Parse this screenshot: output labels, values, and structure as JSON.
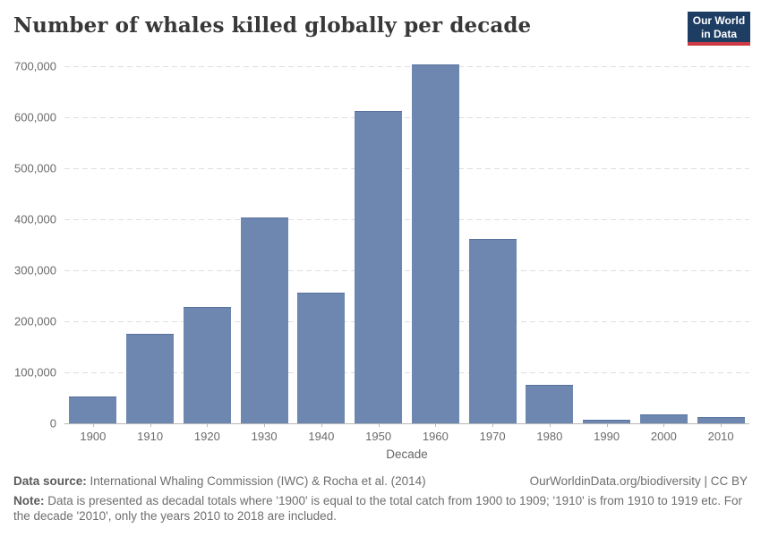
{
  "header": {
    "title": "Number of whales killed globally per decade",
    "logo": {
      "line1": "Our World",
      "line2": "in Data"
    }
  },
  "chart_data": {
    "type": "bar",
    "title": "Number of whales killed globally per decade",
    "categories": [
      "1900",
      "1910",
      "1920",
      "1930",
      "1940",
      "1950",
      "1960",
      "1970",
      "1980",
      "1990",
      "2000",
      "2010"
    ],
    "values": [
      52000,
      176000,
      228000,
      403000,
      256000,
      612000,
      703000,
      362000,
      76000,
      7000,
      17000,
      13000
    ],
    "xlabel": "Decade",
    "ylabel": "",
    "ylim": [
      0,
      700000
    ],
    "ytick_values": [
      0,
      100000,
      200000,
      300000,
      400000,
      500000,
      600000,
      700000
    ],
    "ytick_labels": [
      "0",
      "100,000",
      "200,000",
      "300,000",
      "400,000",
      "500,000",
      "600,000",
      "700,000"
    ],
    "grid": true,
    "legend_position": "none",
    "bar_color": "#6d87b1"
  },
  "footer": {
    "source_label": "Data source:",
    "source_text": " International Whaling Commission (IWC) & Rocha et al. (2014)",
    "attribution": "OurWorldinData.org/biodiversity | CC BY",
    "note_label": "Note:",
    "note_text": " Data is presented as decadal totals where '1900' is equal to the total catch from 1900 to 1909; '1910' is from 1910 to 1919 etc. For the decade '2010', only the years 2010 to 2018 are included."
  },
  "colors": {
    "bar": "#6d87b1",
    "logo_bg": "#1d3d63",
    "logo_red": "#cc3b45",
    "gridline": "#dedede",
    "axis_line": "#b8b8b8",
    "text_gray": "#6e6e6e",
    "title_text": "#383838"
  }
}
